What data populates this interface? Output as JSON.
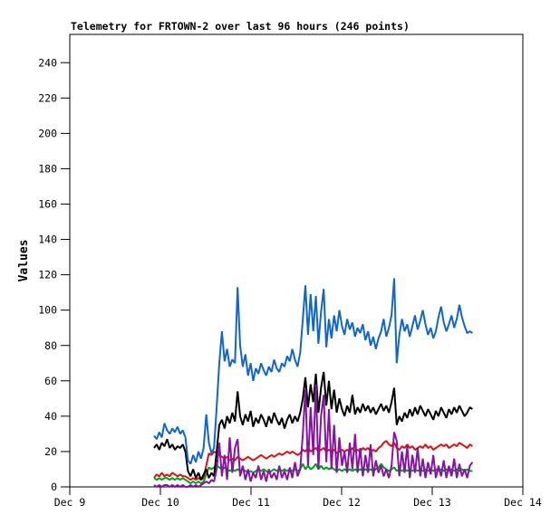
{
  "page": {
    "background_color": "#ffffff",
    "axis_color": "#000000"
  },
  "chart_data": {
    "type": "line",
    "title": "Telemetry for FRTOWN-2 over last 96 hours (246 points)",
    "xlabel": "",
    "ylabel": "Values",
    "legend": "none",
    "grid": false,
    "ylim": [
      0,
      256
    ],
    "yticks": [
      0,
      20,
      40,
      60,
      80,
      100,
      120,
      140,
      160,
      180,
      200,
      220,
      240
    ],
    "xlim_days": [
      0,
      5
    ],
    "xticks": [
      {
        "day": 0,
        "label": "Dec 9"
      },
      {
        "day": 1,
        "label": "Dec 10"
      },
      {
        "day": 2,
        "label": "Dec 11"
      },
      {
        "day": 3,
        "label": "Dec 12"
      },
      {
        "day": 4,
        "label": "Dec 13"
      },
      {
        "day": 5,
        "label": "Dec 14"
      }
    ],
    "x_unit": "days after Dec 9",
    "x_sampling": {
      "start_day": 0.93,
      "step_day": 0.0288,
      "points": 123
    },
    "series": [
      {
        "name": "red",
        "color": "#dd1111",
        "values": [
          5,
          7,
          6,
          8,
          6,
          7,
          6,
          8,
          7,
          6,
          7,
          6,
          6,
          5,
          4,
          5,
          4,
          5,
          4,
          5,
          12,
          19,
          18,
          20,
          19,
          18,
          17,
          16,
          17,
          15,
          16,
          15,
          17,
          16,
          15,
          16,
          17,
          16,
          15,
          16,
          17,
          18,
          17,
          16,
          17,
          18,
          17,
          18,
          19,
          18,
          19,
          20,
          19,
          20,
          19,
          18,
          19,
          21,
          20,
          22,
          20,
          21,
          22,
          20,
          21,
          22,
          20,
          21,
          20,
          21,
          19,
          20,
          21,
          20,
          21,
          20,
          22,
          20,
          21,
          20,
          22,
          21,
          22,
          20,
          21,
          20,
          22,
          23,
          25,
          26,
          24,
          23,
          25,
          22,
          21,
          23,
          22,
          24,
          22,
          23,
          21,
          22,
          23,
          22,
          24,
          22,
          23,
          21,
          22,
          23,
          24,
          23,
          24,
          22,
          23,
          24,
          23,
          25,
          24,
          23,
          22,
          24,
          23
        ]
      },
      {
        "name": "green",
        "color": "#00a018",
        "values": [
          5,
          4,
          5,
          4,
          5,
          5,
          4,
          5,
          4,
          5,
          4,
          5,
          4,
          3,
          2,
          3,
          2,
          3,
          2,
          3,
          7,
          11,
          10,
          11,
          12,
          11,
          10,
          11,
          10,
          9,
          10,
          9,
          10,
          9,
          10,
          9,
          8,
          9,
          8,
          9,
          10,
          9,
          10,
          9,
          8,
          9,
          10,
          9,
          10,
          9,
          10,
          9,
          10,
          9,
          10,
          9,
          10,
          13,
          10,
          12,
          10,
          11,
          13,
          10,
          12,
          10,
          11,
          10,
          11,
          10,
          9,
          10,
          9,
          10,
          9,
          10,
          9,
          10,
          9,
          10,
          9,
          10,
          9,
          10,
          9,
          10,
          11,
          13,
          11,
          10,
          9,
          10,
          11,
          9,
          10,
          9,
          10,
          9,
          10,
          9,
          10,
          9,
          10,
          9,
          10,
          9,
          10,
          9,
          10,
          9,
          10,
          9,
          10,
          9,
          10,
          9,
          10,
          9,
          10,
          9,
          10,
          9,
          9
        ]
      },
      {
        "name": "black",
        "color": "#000000",
        "values": [
          22,
          24,
          21,
          25,
          23,
          27,
          22,
          24,
          21,
          23,
          22,
          24,
          20,
          9,
          6,
          10,
          5,
          8,
          4,
          7,
          10,
          5,
          8,
          6,
          20,
          35,
          38,
          33,
          40,
          36,
          42,
          37,
          54,
          40,
          35,
          41,
          37,
          43,
          34,
          39,
          36,
          41,
          38,
          34,
          40,
          36,
          42,
          38,
          35,
          39,
          33,
          38,
          41,
          36,
          40,
          37,
          42,
          50,
          62,
          45,
          58,
          48,
          64,
          42,
          56,
          65,
          46,
          60,
          44,
          55,
          42,
          50,
          44,
          40,
          46,
          42,
          52,
          41,
          45,
          42,
          47,
          43,
          46,
          42,
          45,
          41,
          44,
          47,
          43,
          46,
          42,
          48,
          56,
          35,
          40,
          37,
          42,
          39,
          44,
          40,
          45,
          41,
          46,
          43,
          40,
          44,
          41,
          38,
          43,
          40,
          45,
          42,
          39,
          44,
          41,
          45,
          42,
          46,
          43,
          40,
          42,
          45,
          44
        ]
      },
      {
        "name": "purple",
        "color": "#8812a4",
        "values": [
          1,
          0,
          1,
          0,
          1,
          1,
          0,
          1,
          0,
          1,
          0,
          1,
          0,
          0,
          1,
          0,
          1,
          0,
          1,
          2,
          3,
          2,
          4,
          3,
          10,
          25,
          6,
          18,
          4,
          28,
          8,
          22,
          27,
          6,
          12,
          4,
          10,
          3,
          8,
          5,
          12,
          4,
          9,
          3,
          10,
          5,
          8,
          4,
          12,
          5,
          9,
          4,
          11,
          5,
          14,
          6,
          10,
          30,
          55,
          12,
          45,
          18,
          58,
          10,
          40,
          52,
          14,
          44,
          10,
          35,
          8,
          28,
          12,
          20,
          8,
          25,
          10,
          30,
          8,
          22,
          6,
          18,
          8,
          24,
          6,
          15,
          8,
          12,
          6,
          10,
          5,
          12,
          31,
          26,
          6,
          20,
          8,
          23,
          5,
          18,
          8,
          22,
          6,
          16,
          5,
          14,
          7,
          18,
          5,
          12,
          6,
          15,
          5,
          12,
          6,
          16,
          5,
          13,
          6,
          10,
          5,
          12,
          14
        ]
      },
      {
        "name": "blue",
        "color": "#1166cc",
        "values": [
          29,
          27,
          31,
          28,
          36,
          32,
          30,
          33,
          31,
          34,
          30,
          32,
          28,
          15,
          13,
          18,
          14,
          20,
          16,
          22,
          41,
          25,
          19,
          22,
          45,
          70,
          88,
          71,
          78,
          68,
          72,
          70,
          113,
          80,
          68,
          75,
          63,
          70,
          60,
          67,
          64,
          70,
          66,
          63,
          68,
          65,
          72,
          67,
          65,
          70,
          68,
          74,
          71,
          78,
          72,
          68,
          76,
          95,
          114,
          86,
          109,
          88,
          108,
          81,
          99,
          112,
          79,
          95,
          84,
          97,
          88,
          100,
          91,
          86,
          95,
          89,
          93,
          85,
          90,
          87,
          92,
          83,
          88,
          80,
          85,
          78,
          84,
          88,
          95,
          85,
          90,
          97,
          118,
          70,
          86,
          95,
          88,
          92,
          85,
          91,
          97,
          89,
          94,
          100,
          92,
          86,
          90,
          84,
          88,
          96,
          102,
          93,
          88,
          92,
          97,
          90,
          95,
          103,
          96,
          91,
          87,
          88,
          87
        ]
      }
    ]
  }
}
